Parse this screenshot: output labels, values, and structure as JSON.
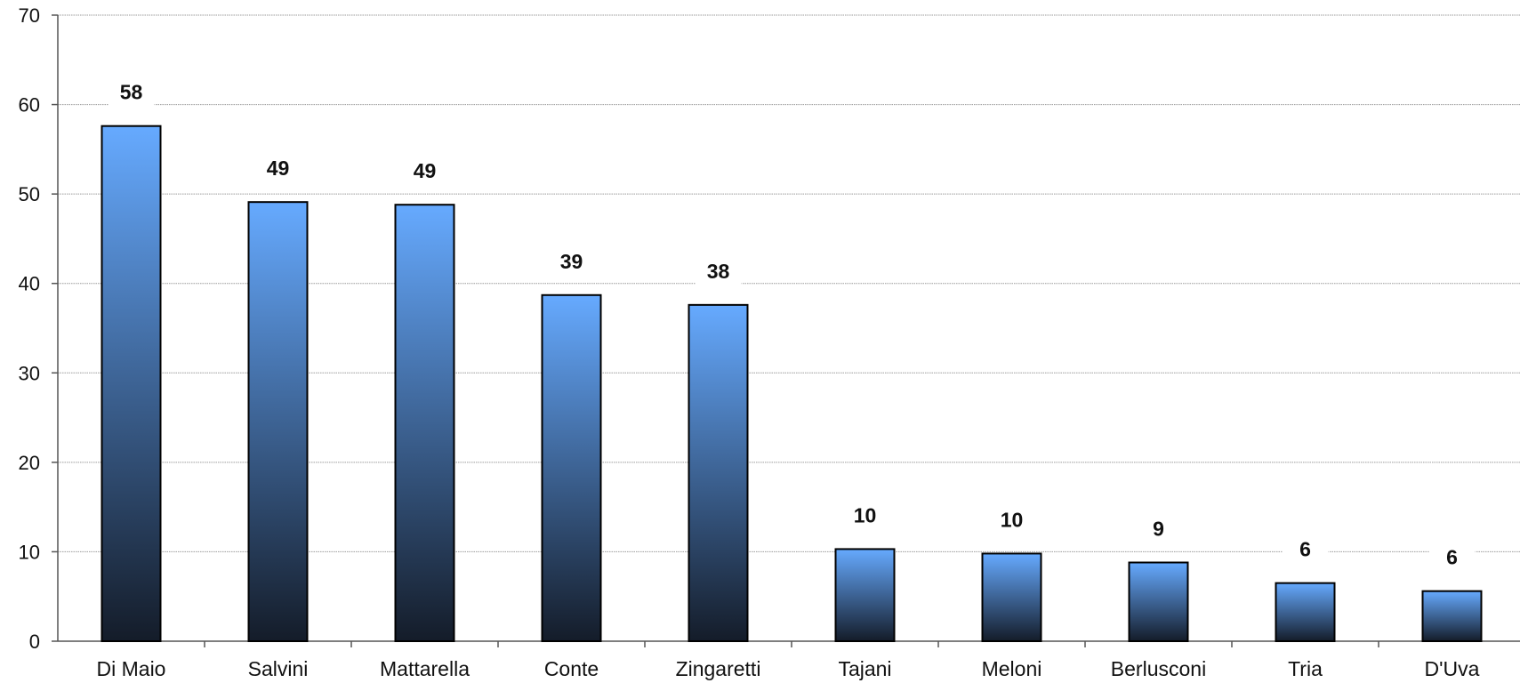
{
  "chart_data": {
    "type": "bar",
    "title": "",
    "xlabel": "",
    "ylabel": "",
    "categories": [
      "Di Maio",
      "Salvini",
      "Mattarella",
      "Conte",
      "Zingaretti",
      "Tajani",
      "Meloni",
      "Berlusconi",
      "Tria",
      "D'Uva"
    ],
    "values": [
      57.6,
      49.1,
      48.8,
      38.7,
      37.6,
      10.3,
      9.8,
      8.8,
      6.5,
      5.6
    ],
    "data_labels": [
      "58",
      "49",
      "49",
      "39",
      "38",
      "10",
      "10",
      "9",
      "6",
      "6"
    ],
    "ylim": [
      0,
      70
    ],
    "yticks": [
      0,
      10,
      20,
      30,
      40,
      50,
      60,
      70
    ],
    "grid": true,
    "legend": "none",
    "colors": {
      "bar_top": "#66aaff",
      "bar_bottom": "#141c29",
      "bar_outline": "#000000",
      "grid": "#9a9a9a",
      "axis": "#555555"
    }
  }
}
